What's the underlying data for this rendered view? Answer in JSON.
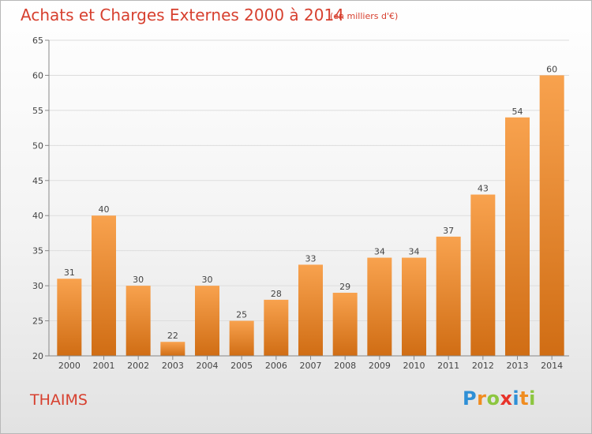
{
  "title": "Achats et Charges Externes 2000 à 2014",
  "subtitle": "(en milliers d'€)",
  "commune": "THAIMS",
  "logo": {
    "letters": [
      "P",
      "r",
      "o",
      "x",
      "i",
      "t",
      "i"
    ]
  },
  "colors": {
    "title": "#d7402f",
    "bar_top": "#f8a24e",
    "bar_bottom": "#d06d14",
    "axis": "#888888",
    "grid": "#dddddd",
    "logo": [
      "#2e8fd6",
      "#f08c20",
      "#8cc63f",
      "#e8332a",
      "#2e8fd6",
      "#f08c20",
      "#8cc63f"
    ]
  },
  "chart_data": {
    "type": "bar",
    "title": "Achats et Charges Externes 2000 à 2014",
    "subtitle": "(en milliers d'€)",
    "xlabel": "",
    "ylabel": "",
    "categories": [
      "2000",
      "2001",
      "2002",
      "2003",
      "2004",
      "2005",
      "2006",
      "2007",
      "2008",
      "2009",
      "2010",
      "2011",
      "2012",
      "2013",
      "2014"
    ],
    "values": [
      31,
      40,
      30,
      22,
      30,
      25,
      28,
      33,
      29,
      34,
      34,
      37,
      43,
      54,
      60
    ],
    "ylim": [
      20,
      65
    ],
    "yticks": [
      20,
      25,
      30,
      35,
      40,
      45,
      50,
      55,
      60,
      65
    ],
    "grid": true,
    "data_labels": true
  }
}
